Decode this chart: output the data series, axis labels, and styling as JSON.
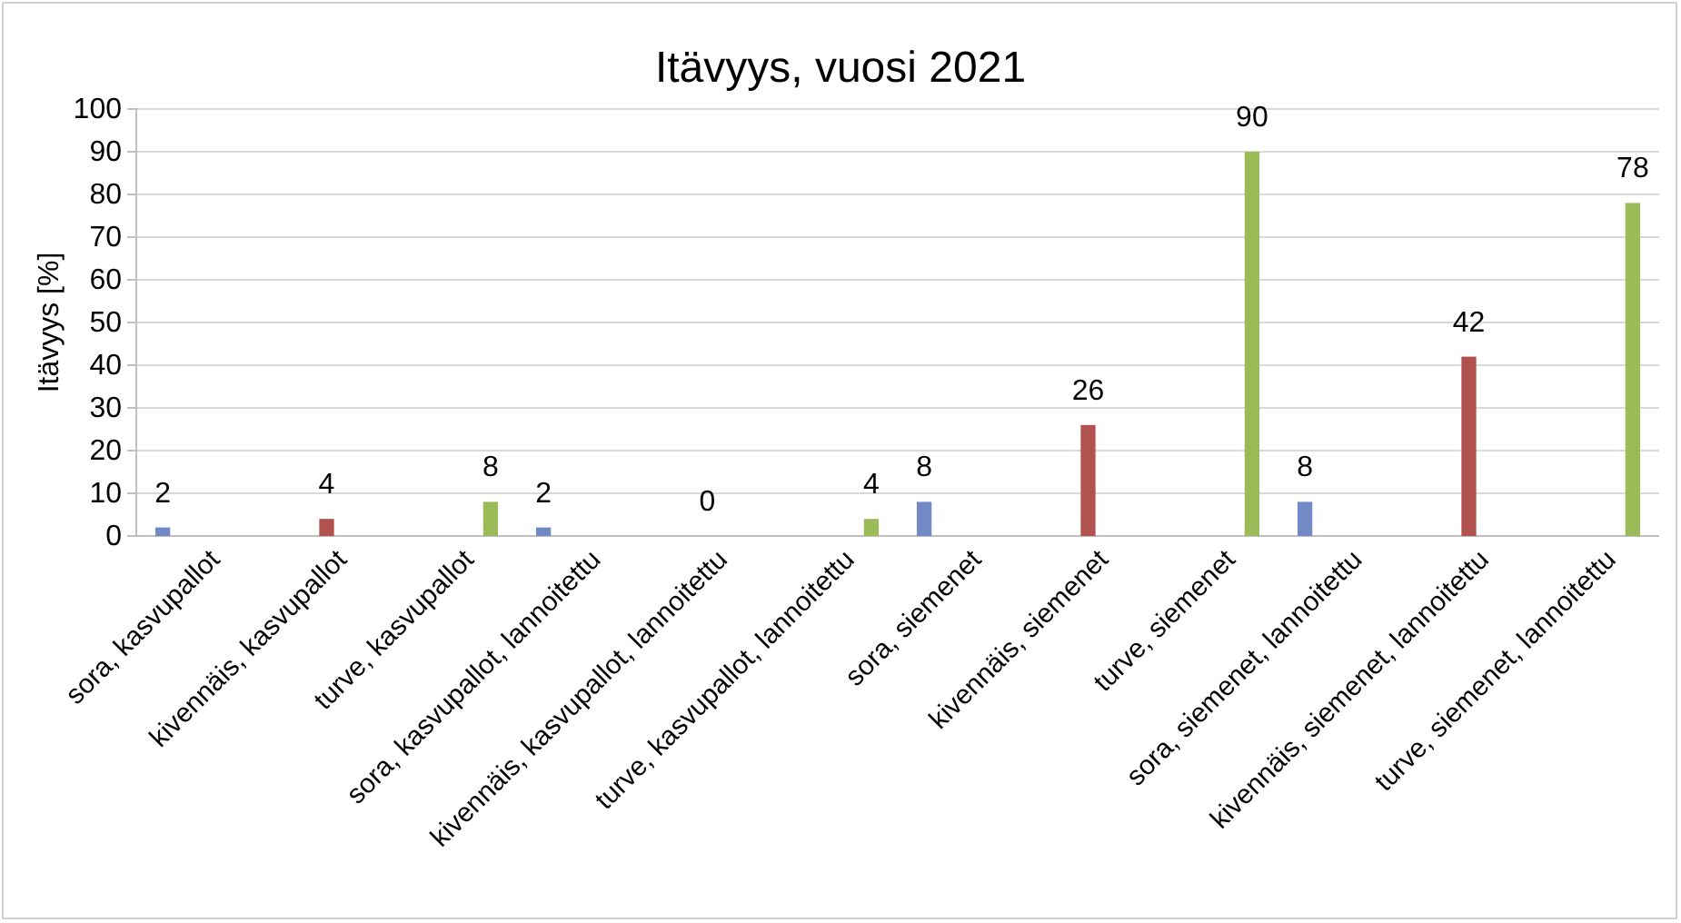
{
  "chart_data": {
    "type": "bar",
    "title": "Itävyys, vuosi 2021",
    "ylabel": "Itävyys [%]",
    "categories": [
      "sora, kasvupallot",
      "kivennäis, kasvupallot",
      "turve, kasvupallot",
      "sora, kasvupallot, lannoitettu",
      "kivennäis, kasvupallot, lannoitettu",
      "turve, kasvupallot, lannoitettu",
      "sora, siemenet",
      "kivennäis, siemenet",
      "turve, siemenet",
      "sora, siemenet, lannoitettu",
      "kivennäis, siemenet, lannoitettu",
      "turve, siemenet, lannoitettu"
    ],
    "series": [
      {
        "color": "#7189c5",
        "values": [
          2,
          null,
          null,
          2,
          null,
          null,
          8,
          null,
          null,
          8,
          null,
          null
        ]
      },
      {
        "color": "#b2524f",
        "values": [
          null,
          4,
          null,
          null,
          0,
          null,
          null,
          26,
          null,
          null,
          42,
          null
        ]
      },
      {
        "color": "#9bbb59",
        "values": [
          null,
          null,
          8,
          null,
          null,
          4,
          null,
          null,
          90,
          null,
          null,
          78
        ]
      }
    ],
    "ylim": [
      0,
      100
    ],
    "yticks": [
      0,
      10,
      20,
      30,
      40,
      50,
      60,
      70,
      80,
      90,
      100
    ],
    "grid": "y",
    "data_labels": true
  }
}
